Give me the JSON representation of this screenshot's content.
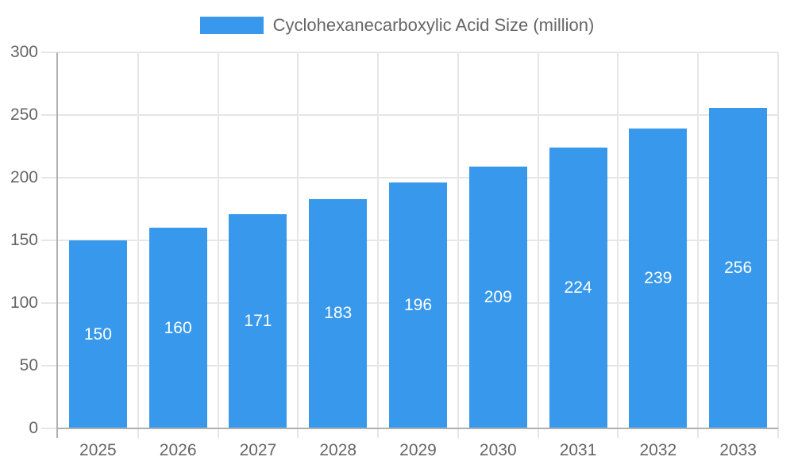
{
  "legend": {
    "label": "Cyclohexanecarboxylic Acid Size (million)"
  },
  "chart_data": {
    "type": "bar",
    "title": "Cyclohexanecarboxylic Acid Size (million)",
    "categories": [
      "2025",
      "2026",
      "2027",
      "2028",
      "2029",
      "2030",
      "2031",
      "2032",
      "2033"
    ],
    "values": [
      150,
      160,
      171,
      183,
      196,
      209,
      224,
      239,
      256
    ],
    "xlabel": "",
    "ylabel": "",
    "ylim": [
      0,
      300
    ],
    "ytick_step": 50,
    "yticks": [
      0,
      50,
      100,
      150,
      200,
      250,
      300
    ],
    "grid": true,
    "legend_position": "top",
    "value_labels": "inside-center",
    "colors": {
      "bar": "#3899ec",
      "axis": "#b0b0b0",
      "grid": "#e6e6e6",
      "tick_text": "#666666",
      "value_label": "#ffffff",
      "background": "#ffffff"
    }
  }
}
